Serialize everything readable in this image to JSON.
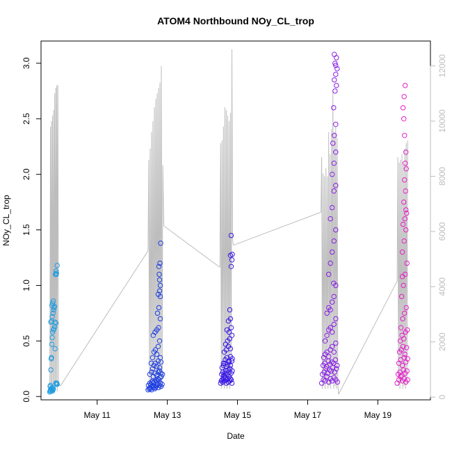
{
  "chart_data": {
    "type": "scatter",
    "title": "ATOM4 Northbound NOy_CL_trop",
    "xlabel": "Date",
    "ylabel": "NOy_CL_trop",
    "x_unit": "days (May 2018)",
    "xlim": [
      9.4,
      20.5
    ],
    "ylim": [
      -0.03,
      3.2
    ],
    "y2lim": [
      -100,
      12900
    ],
    "x_ticks": [
      {
        "value": 11,
        "label": "May 11"
      },
      {
        "value": 13,
        "label": "May 13"
      },
      {
        "value": 15,
        "label": "May 15"
      },
      {
        "value": 17,
        "label": "May 17"
      },
      {
        "value": 19,
        "label": "May 19"
      }
    ],
    "y_ticks": [
      {
        "value": 0.0,
        "label": "0.0"
      },
      {
        "value": 0.5,
        "label": "0.5"
      },
      {
        "value": 1.0,
        "label": "1.0"
      },
      {
        "value": 1.5,
        "label": "1.5"
      },
      {
        "value": 2.0,
        "label": "2.0"
      },
      {
        "value": 2.5,
        "label": "2.5"
      },
      {
        "value": 3.0,
        "label": "3.0"
      }
    ],
    "y2_ticks": [
      {
        "value": 0,
        "label": "0"
      },
      {
        "value": 2000,
        "label": "2000"
      },
      {
        "value": 4000,
        "label": "4000"
      },
      {
        "value": 6000,
        "label": "6000"
      },
      {
        "value": 8000,
        "label": "8000"
      },
      {
        "value": 10000,
        "label": "10000"
      },
      {
        "value": 12000,
        "label": "12000"
      }
    ],
    "grid": false,
    "legend": "none",
    "colors": {
      "flight1": "#1e9be0",
      "flight2": "#1f3fe0",
      "flight3": "#3a18e6",
      "flight4": "#8a1ee6",
      "flight5": "#e61ec8",
      "altitude": "#bdbdbd"
    },
    "series": [
      {
        "color": "#1e9be0",
        "x": [
          9.65,
          9.66,
          9.67,
          9.68,
          9.7,
          9.71,
          9.72,
          9.73,
          9.74,
          9.75,
          9.66,
          9.67,
          9.68,
          9.69,
          9.7,
          9.71,
          9.72,
          9.73,
          9.75,
          9.77,
          9.79,
          9.8,
          9.82,
          9.68,
          9.7,
          9.72,
          9.74,
          9.76,
          9.78,
          9.71,
          9.73,
          9.75,
          9.77,
          9.78,
          9.8,
          9.82,
          9.84,
          9.85,
          9.86,
          9.81,
          9.83,
          9.84,
          9.86,
          9.83
        ],
        "y": [
          0.04,
          0.05,
          0.06,
          0.05,
          0.07,
          0.06,
          0.08,
          0.05,
          0.06,
          0.07,
          0.09,
          0.1,
          0.24,
          0.34,
          0.35,
          0.47,
          0.53,
          0.58,
          0.6,
          0.61,
          0.63,
          0.67,
          0.66,
          0.67,
          0.68,
          0.72,
          0.75,
          0.78,
          0.81,
          0.82,
          0.84,
          0.86,
          0.8,
          0.81,
          0.43,
          0.12,
          0.11,
          0.12,
          0.11,
          1.1,
          1.1,
          1.11,
          1.18,
          1.13
        ]
      },
      {
        "color": "#1f3fe0",
        "x": [
          12.45,
          12.48,
          12.5,
          12.52,
          12.55,
          12.57,
          12.6,
          12.62,
          12.64,
          12.66,
          12.68,
          12.7,
          12.72,
          12.75,
          12.78,
          12.8,
          12.82,
          12.85,
          12.46,
          12.5,
          12.53,
          12.56,
          12.58,
          12.61,
          12.63,
          12.67,
          12.7,
          12.73,
          12.76,
          12.79,
          12.83,
          12.86,
          12.5,
          12.55,
          12.6,
          12.65,
          12.7,
          12.74,
          12.78,
          12.82,
          12.54,
          12.58,
          12.62,
          12.66,
          12.7,
          12.74,
          12.78,
          12.6,
          12.65,
          12.7,
          12.75,
          12.8,
          12.72,
          12.76,
          12.8,
          12.74,
          12.78,
          12.8,
          12.77,
          12.79,
          12.81,
          12.76,
          12.78,
          12.58,
          12.62,
          12.66,
          12.7,
          12.74,
          12.78,
          12.8,
          12.82
        ],
        "y": [
          0.06,
          0.07,
          0.08,
          0.07,
          0.06,
          0.09,
          0.08,
          0.1,
          0.07,
          0.08,
          0.09,
          0.1,
          0.11,
          0.08,
          0.1,
          0.12,
          0.09,
          0.11,
          0.1,
          0.12,
          0.11,
          0.13,
          0.14,
          0.12,
          0.13,
          0.15,
          0.14,
          0.16,
          0.15,
          0.17,
          0.18,
          0.2,
          0.2,
          0.22,
          0.18,
          0.21,
          0.19,
          0.22,
          0.23,
          0.21,
          0.3,
          0.35,
          0.4,
          0.42,
          0.38,
          0.45,
          0.5,
          0.55,
          0.58,
          0.6,
          0.62,
          0.7,
          0.75,
          0.8,
          0.9,
          0.92,
          0.95,
          1.0,
          1.1,
          1.2,
          1.38,
          1.17,
          1.05,
          0.25,
          0.28,
          0.3,
          0.27,
          0.32,
          0.26,
          0.35,
          0.31
        ]
      },
      {
        "color": "#3a18e6",
        "x": [
          14.52,
          14.54,
          14.56,
          14.58,
          14.6,
          14.62,
          14.64,
          14.66,
          14.68,
          14.7,
          14.72,
          14.74,
          14.76,
          14.78,
          14.8,
          14.82,
          14.84,
          14.55,
          14.58,
          14.61,
          14.64,
          14.67,
          14.7,
          14.73,
          14.76,
          14.79,
          14.82,
          14.85,
          14.56,
          14.6,
          14.64,
          14.68,
          14.72,
          14.76,
          14.8,
          14.84,
          14.6,
          14.65,
          14.7,
          14.75,
          14.8,
          14.85,
          14.62,
          14.68,
          14.74,
          14.8,
          14.66,
          14.72,
          14.78,
          14.84,
          14.7,
          14.76,
          14.82,
          14.74,
          14.8,
          14.78,
          14.82,
          14.84,
          14.85,
          14.8,
          14.82
        ],
        "y": [
          0.12,
          0.14,
          0.15,
          0.13,
          0.16,
          0.18,
          0.14,
          0.17,
          0.12,
          0.15,
          0.16,
          0.13,
          0.18,
          0.14,
          0.16,
          0.15,
          0.12,
          0.2,
          0.22,
          0.19,
          0.21,
          0.23,
          0.2,
          0.24,
          0.22,
          0.25,
          0.21,
          0.23,
          0.26,
          0.28,
          0.3,
          0.27,
          0.29,
          0.31,
          0.28,
          0.32,
          0.3,
          0.33,
          0.35,
          0.32,
          0.36,
          0.34,
          0.4,
          0.42,
          0.45,
          0.43,
          0.47,
          0.5,
          0.52,
          0.55,
          0.6,
          0.58,
          0.62,
          0.68,
          0.7,
          0.78,
          1.17,
          1.23,
          1.28,
          1.27,
          1.45
        ]
      },
      {
        "color": "#8a1ee6",
        "x": [
          17.4,
          17.45,
          17.5,
          17.55,
          17.6,
          17.65,
          17.7,
          17.75,
          17.8,
          17.85,
          17.42,
          17.47,
          17.52,
          17.57,
          17.62,
          17.67,
          17.72,
          17.77,
          17.82,
          17.44,
          17.49,
          17.54,
          17.59,
          17.64,
          17.69,
          17.74,
          17.79,
          17.84,
          17.46,
          17.5,
          17.55,
          17.6,
          17.65,
          17.7,
          17.75,
          17.8,
          17.5,
          17.55,
          17.6,
          17.65,
          17.7,
          17.75,
          17.8,
          17.55,
          17.6,
          17.65,
          17.7,
          17.75,
          17.8,
          17.6,
          17.65,
          17.7,
          17.75,
          17.8,
          17.65,
          17.7,
          17.75,
          17.8,
          17.7,
          17.75,
          17.8,
          17.72,
          17.76,
          17.8,
          17.74,
          17.78,
          17.82,
          17.76,
          17.8,
          17.84,
          17.78,
          17.82,
          17.76,
          17.8,
          17.74
        ],
        "y": [
          0.12,
          0.15,
          0.14,
          0.18,
          0.13,
          0.16,
          0.14,
          0.17,
          0.15,
          0.13,
          0.2,
          0.22,
          0.25,
          0.21,
          0.24,
          0.23,
          0.26,
          0.22,
          0.25,
          0.28,
          0.3,
          0.27,
          0.32,
          0.29,
          0.31,
          0.3,
          0.33,
          0.28,
          0.35,
          0.38,
          0.4,
          0.36,
          0.42,
          0.45,
          0.4,
          0.48,
          0.5,
          0.55,
          0.6,
          0.62,
          0.58,
          0.65,
          0.7,
          0.75,
          0.8,
          0.78,
          0.85,
          0.9,
          1.0,
          1.1,
          1.2,
          1.3,
          1.4,
          1.5,
          1.6,
          1.7,
          1.85,
          1.9,
          2.0,
          2.1,
          2.2,
          2.28,
          2.35,
          2.45,
          2.6,
          2.75,
          2.8,
          2.85,
          2.9,
          2.95,
          3.0,
          3.05,
          3.08,
          2.98,
          1.02
        ]
      },
      {
        "color": "#e61ec8",
        "x": [
          19.55,
          19.6,
          19.65,
          19.7,
          19.75,
          19.8,
          19.85,
          19.58,
          19.63,
          19.68,
          19.73,
          19.78,
          19.83,
          19.6,
          19.65,
          19.7,
          19.75,
          19.8,
          19.85,
          19.62,
          19.67,
          19.72,
          19.77,
          19.82,
          19.64,
          19.69,
          19.74,
          19.79,
          19.84,
          19.66,
          19.71,
          19.76,
          19.81,
          19.68,
          19.73,
          19.78,
          19.83,
          19.7,
          19.75,
          19.8,
          19.72,
          19.77,
          19.82,
          19.74,
          19.79,
          19.76,
          19.81,
          19.78,
          19.8,
          19.76,
          19.74,
          19.72,
          19.75,
          19.78,
          19.8,
          19.7
        ],
        "y": [
          0.12,
          0.15,
          0.18,
          0.14,
          0.16,
          0.13,
          0.15,
          0.2,
          0.22,
          0.19,
          0.24,
          0.21,
          0.23,
          0.3,
          0.33,
          0.28,
          0.35,
          0.31,
          0.34,
          0.4,
          0.42,
          0.45,
          0.38,
          0.44,
          0.5,
          0.55,
          0.52,
          0.58,
          0.6,
          0.62,
          0.7,
          0.75,
          0.8,
          0.9,
          1.0,
          1.1,
          1.2,
          1.3,
          1.4,
          1.5,
          1.55,
          1.6,
          1.65,
          1.75,
          1.85,
          1.95,
          2.05,
          2.1,
          2.2,
          2.35,
          2.5,
          2.6,
          2.7,
          2.8,
          1.68,
          1.08
        ]
      }
    ],
    "altitude_series": {
      "color": "#bdbdbd",
      "segments": [
        {
          "x": [
            9.65,
            9.67,
            9.68,
            9.7,
            9.71,
            9.73,
            9.74,
            9.76,
            9.77,
            9.79,
            9.8,
            9.82,
            9.83,
            9.85,
            9.86,
            9.88,
            9.9,
            9.95
          ],
          "y": [
            300,
            9800,
            300,
            10000,
            400,
            10200,
            300,
            10400,
            500,
            11000,
            300,
            11200,
            400,
            11300,
            200,
            11300,
            500,
            400
          ]
        },
        {
          "x": [
            9.95,
            12.45
          ],
          "y": [
            400,
            5300
          ]
        },
        {
          "x": [
            12.45,
            12.47,
            12.49,
            12.51,
            12.53,
            12.55,
            12.57,
            12.59,
            12.61,
            12.63,
            12.65,
            12.67,
            12.69,
            12.71,
            12.73,
            12.75,
            12.77,
            12.79,
            12.81,
            12.83,
            12.85,
            12.87,
            12.9
          ],
          "y": [
            5300,
            8600,
            400,
            9000,
            300,
            9600,
            500,
            10000,
            400,
            10500,
            300,
            10800,
            500,
            11000,
            400,
            11200,
            300,
            11400,
            500,
            12000,
            300,
            8400,
            6200
          ]
        },
        {
          "x": [
            12.9,
            14.5
          ],
          "y": [
            6200,
            4700
          ]
        },
        {
          "x": [
            14.5,
            14.52,
            14.54,
            14.56,
            14.58,
            14.6,
            14.62,
            14.64,
            14.66,
            14.68,
            14.7,
            14.72,
            14.74,
            14.76,
            14.78,
            14.8,
            14.82,
            14.84,
            14.86,
            14.88
          ],
          "y": [
            4700,
            9200,
            300,
            9300,
            400,
            9800,
            300,
            10500,
            500,
            10400,
            300,
            10200,
            400,
            10000,
            300,
            10300,
            500,
            12600,
            5700,
            5500
          ]
        },
        {
          "x": [
            14.88,
            17.38
          ],
          "y": [
            5500,
            6700
          ]
        },
        {
          "x": [
            17.38,
            17.4,
            17.42,
            17.44,
            17.46,
            17.48,
            17.5,
            17.52,
            17.54,
            17.56,
            17.58,
            17.6,
            17.62,
            17.64,
            17.66,
            17.68,
            17.7,
            17.72,
            17.74,
            17.76,
            17.78,
            17.8,
            17.82,
            17.84,
            17.86,
            17.88
          ],
          "y": [
            6700,
            8700,
            300,
            8100,
            400,
            8000,
            300,
            8300,
            500,
            8000,
            300,
            9600,
            400,
            8800,
            300,
            9700,
            500,
            11100,
            300,
            9600,
            400,
            9800,
            300,
            9400,
            500,
            100
          ]
        },
        {
          "x": [
            17.88,
            19.55
          ],
          "y": [
            100,
            4200
          ]
        },
        {
          "x": [
            19.55,
            19.57,
            19.59,
            19.61,
            19.63,
            19.65,
            19.67,
            19.69,
            19.71,
            19.73,
            19.75,
            19.77,
            19.79,
            19.81,
            19.83,
            19.85
          ],
          "y": [
            4200,
            8700,
            400,
            8500,
            300,
            8600,
            500,
            8800,
            300,
            8400,
            400,
            9000,
            300,
            9200,
            500,
            9300
          ]
        }
      ]
    }
  }
}
